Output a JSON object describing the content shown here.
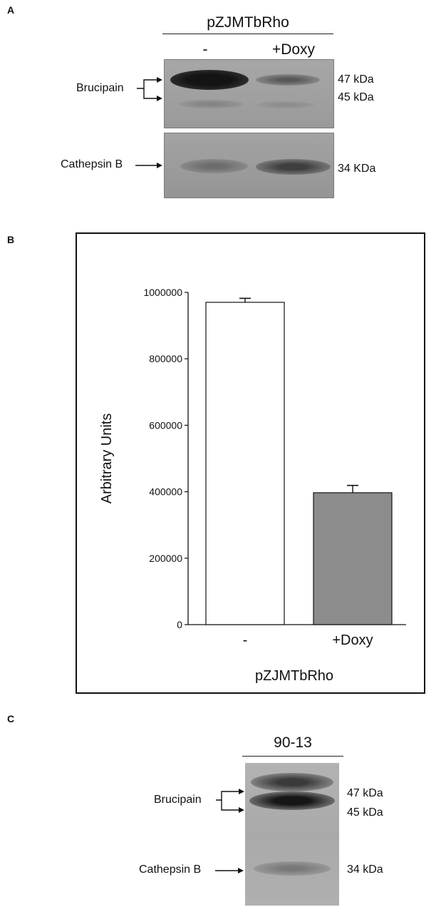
{
  "panels": {
    "a": {
      "letter": "A",
      "sample": "pZJMTbRho",
      "lanes": [
        "-",
        "+Doxy"
      ],
      "blot1_label": "Brucipain",
      "blot1_markers": [
        "47 kDa",
        "45 kDa"
      ],
      "blot2_label": "Cathepsin B",
      "blot2_marker": "34 KDa"
    },
    "b": {
      "letter": "B"
    },
    "c": {
      "letter": "C",
      "sample": "90-13",
      "brucipain_label": "Brucipain",
      "cathepsin_label": "Cathepsin B",
      "markers": [
        "47 kDa",
        "45 kDa",
        "34 kDa"
      ]
    }
  },
  "chart_data": {
    "type": "bar",
    "categories": [
      "-",
      "+Doxy"
    ],
    "values": [
      970000,
      397000
    ],
    "errors": [
      12000,
      22000
    ],
    "bar_colors": [
      "#ffffff",
      "#8c8c8c"
    ],
    "xlabel": "pZJMTbRho",
    "ylabel": "Arbitrary Units",
    "ylim": [
      0,
      1000000
    ],
    "yticks": [
      0,
      200000,
      400000,
      600000,
      800000,
      1000000
    ],
    "ytick_labels": [
      "0",
      "200000",
      "400000",
      "600000",
      "800000",
      "1000000"
    ],
    "grid": false
  }
}
